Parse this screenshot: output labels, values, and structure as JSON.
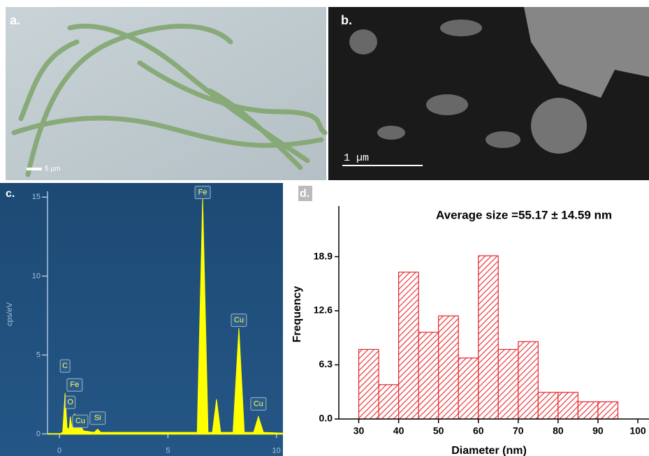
{
  "panels": {
    "a": {
      "label": "a.",
      "scale_bar": "5 µm"
    },
    "b": {
      "label": "b.",
      "scale_bar": "1 µm"
    },
    "c": {
      "label": "c."
    },
    "d": {
      "label": "d."
    }
  },
  "chart_data": [
    {
      "type": "area",
      "y_label": "cps/eV",
      "color": "#ffff00",
      "x": [
        0,
        0.15,
        0.26,
        0.35,
        0.45,
        0.5,
        0.58,
        0.7,
        0.8,
        0.96,
        1.1,
        1.6,
        1.76,
        1.9,
        6.35,
        6.6,
        6.85,
        7.05,
        7.24,
        7.43,
        8.0,
        8.27,
        8.52,
        8.95,
        9.17,
        9.4,
        10.3
      ],
      "values": [
        0,
        0.1,
        2.6,
        0.4,
        0.3,
        1.1,
        0.4,
        1.3,
        0.4,
        0.6,
        0.2,
        0.1,
        0.3,
        0.1,
        0.1,
        15,
        0.1,
        0.1,
        2.2,
        0.1,
        0.1,
        6.7,
        0.1,
        0.1,
        1.1,
        0.1,
        0.05
      ],
      "xlim": [
        -0.55,
        10.3
      ],
      "ylim": [
        -1.4,
        15.9
      ],
      "xticks": [
        0,
        5,
        10
      ],
      "yticks": [
        0,
        5,
        10,
        15
      ],
      "annotations": [
        {
          "text": "C",
          "x": 0.26,
          "y": 4.3
        },
        {
          "text": "Fe",
          "x": 0.7,
          "y": 3.1
        },
        {
          "text": "O",
          "x": 0.5,
          "y": 2.0
        },
        {
          "text": "Cu",
          "x": 0.96,
          "y": 0.8
        },
        {
          "text": "Si",
          "x": 1.76,
          "y": 1.0
        },
        {
          "text": "Fe",
          "x": 6.6,
          "y": 15.3
        },
        {
          "text": "Cu",
          "x": 8.27,
          "y": 7.2
        },
        {
          "text": "Cu",
          "x": 9.17,
          "y": 1.9
        }
      ]
    },
    {
      "type": "histogram",
      "title": "Average size =55.17 ± 14.59 nm",
      "x_label": "Diameter (nm)",
      "y_label": "Frequency",
      "color": "#e8262b",
      "bins": [
        30,
        35,
        40,
        45,
        50,
        55,
        60,
        65,
        70,
        75,
        80,
        85,
        90,
        95
      ],
      "values": [
        8.1,
        4.0,
        17.1,
        10.1,
        12.0,
        7.1,
        19.0,
        8.1,
        9.0,
        3.1,
        3.1,
        2.0,
        2.0
      ],
      "xlim": [
        25,
        100
      ],
      "ylim": [
        0,
        24.8
      ],
      "xticks": [
        30,
        40,
        50,
        60,
        70,
        80,
        90,
        100
      ],
      "yticks": [
        {
          "value": 0,
          "label": "0.0"
        },
        6.3,
        12.6,
        18.9
      ]
    }
  ]
}
